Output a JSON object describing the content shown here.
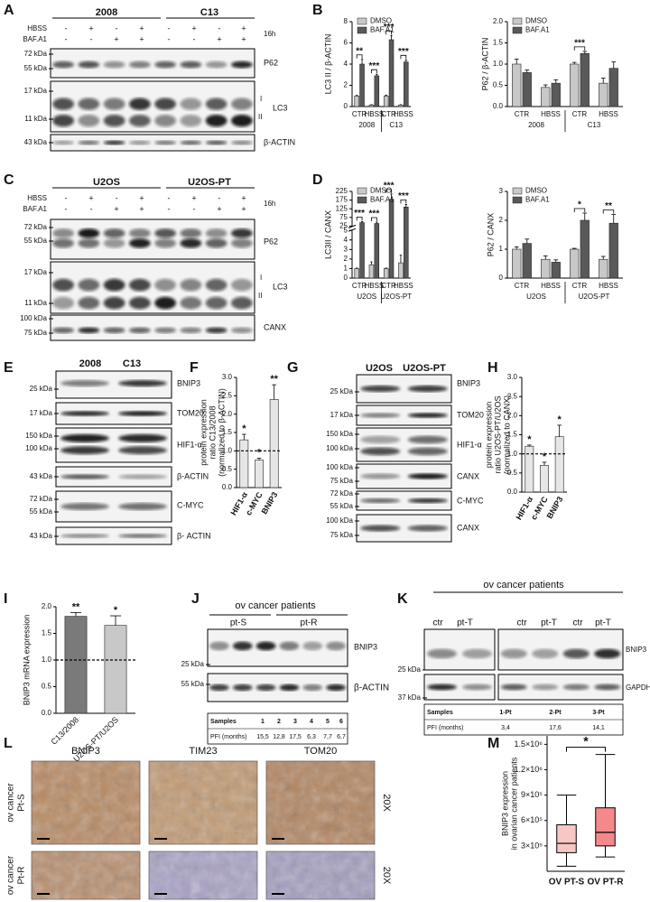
{
  "panels": [
    "A",
    "B",
    "C",
    "D",
    "E",
    "F",
    "G",
    "H",
    "I",
    "J",
    "K",
    "L",
    "M"
  ],
  "blot_A": {
    "headers": [
      "2008",
      "C13"
    ],
    "rows": [
      {
        "name": "HBSS",
        "signs": [
          "-",
          "+",
          "-",
          "+",
          "-",
          "+",
          "-",
          "+"
        ]
      },
      {
        "name": "BAF.A1",
        "signs": [
          "-",
          "-",
          "+",
          "+",
          "-",
          "-",
          "+",
          "+"
        ]
      }
    ],
    "time": "16h",
    "kda": [
      "72 kDa",
      "55 kDa",
      "17 kDa",
      "11 kDa",
      "43 kDa"
    ],
    "proteins": [
      "P62",
      "LC3",
      "β-ACTIN"
    ],
    "bands": [
      "I",
      "II"
    ]
  },
  "blot_C": {
    "headers": [
      "U2OS",
      "U2OS-PT"
    ],
    "rows": [
      {
        "name": "HBSS",
        "signs": [
          "-",
          "+",
          "-",
          "+",
          "-",
          "+",
          "-",
          "+"
        ]
      },
      {
        "name": "BAF.A1",
        "signs": [
          "-",
          "-",
          "+",
          "+",
          "-",
          "-",
          "+",
          "+"
        ]
      }
    ],
    "time": "16h",
    "kda": [
      "72 kDa",
      "55 kDa",
      "17 kDa",
      "11 kDa",
      "100 kDa",
      "75 kDa"
    ],
    "proteins": [
      "P62",
      "LC3",
      "CANX"
    ],
    "bands": [
      "I",
      "II"
    ]
  },
  "blot_E": {
    "headers": [
      "2008",
      "C13"
    ],
    "kda": [
      "25 kDa",
      "17 kDa",
      "150 kDa",
      "100 kDa",
      "43 kDa",
      "72 kDa",
      "55 kDa",
      "43 kDa"
    ],
    "proteins": [
      "BNIP3",
      "TOM20",
      "HIF1-α",
      "β-ACTIN",
      "C-MYC",
      "β- ACTIN"
    ]
  },
  "blot_G": {
    "headers": [
      "U2OS",
      "U2OS-PT"
    ],
    "kda": [
      "25 kDa",
      "17 kDa",
      "150 kDa",
      "100 kDa",
      "100 kDa",
      "75 kDa",
      "72 kDa",
      "55 kDa",
      "100 kDa",
      "75 kDa"
    ],
    "proteins": [
      "BNIP3",
      "TOM20",
      "HIF1-α",
      "CANX",
      "C-MYC",
      "CANX"
    ]
  },
  "blot_J": {
    "title": "ov cancer patients",
    "groups": [
      "pt-S",
      "pt-R"
    ],
    "kda": [
      "25 kDa",
      "55 kDa"
    ],
    "proteins": [
      "BNIP3",
      "β-ACTIN"
    ],
    "table": [
      [
        "Samples",
        "1",
        "2",
        "3",
        "4",
        "5",
        "6"
      ],
      [
        "PFI (months)",
        "15,5",
        "12,8",
        "17,5",
        "6,3",
        "7,7",
        "6,7"
      ]
    ]
  },
  "blot_K": {
    "title": "ov cancer patients",
    "lanes": [
      "ctr",
      "pt-T",
      "ctr",
      "pt-T",
      "ctr",
      "pt-T"
    ],
    "kda": [
      "25 kDa",
      "37 kDa"
    ],
    "proteins": [
      "BNIP3",
      "GAPDH"
    ],
    "table": [
      [
        "Samples",
        "1-Pt",
        "2-Pt",
        "3-Pt"
      ],
      [
        "PFI (months)",
        "3,4",
        "17,6",
        "14,1"
      ]
    ]
  },
  "histology": {
    "columns": [
      "BNIP3",
      "TIM23",
      "TOM20"
    ],
    "rows": [
      [
        "ov cancer",
        "Pt-S"
      ],
      [
        "ov cancer",
        "Pt-R"
      ]
    ],
    "magnification": "20X"
  },
  "chart_data": [
    {
      "type": "bar",
      "ylabel": [
        "LC3 II / β-ACTIN"
      ],
      "categories": [
        "CTR",
        "HBSS",
        "CTR",
        "HBSS"
      ],
      "category_groups": [
        "2008",
        "C13"
      ],
      "series": [
        {
          "name": "DMSO",
          "color": "#c8c8c8",
          "values": [
            1,
            0.15,
            1,
            0.15
          ],
          "errors": [
            0.05,
            0.03,
            0.08,
            0.03
          ]
        },
        {
          "name": "BAF.A1",
          "color": "#595959",
          "values": [
            4,
            2.9,
            6.3,
            4.2
          ],
          "errors": [
            0.45,
            0.15,
            0.4,
            0.2
          ]
        }
      ],
      "annotations": [
        "**",
        "***",
        "***",
        "***"
      ],
      "ylim": [
        0,
        8
      ],
      "yticks": [
        0,
        2,
        4,
        6,
        8
      ]
    },
    {
      "type": "bar",
      "ylabel": [
        "P62 / β-ACTIN"
      ],
      "categories": [
        "CTR",
        "HBSS",
        "CTR",
        "HBSS"
      ],
      "category_groups": [
        "2008",
        "C13"
      ],
      "series": [
        {
          "name": "DMSO",
          "color": "#c8c8c8",
          "values": [
            1.0,
            0.45,
            1.0,
            0.55
          ],
          "errors": [
            0.12,
            0.06,
            0.04,
            0.12
          ]
        },
        {
          "name": "BAF.A1",
          "color": "#595959",
          "values": [
            0.8,
            0.55,
            1.25,
            0.9
          ],
          "errors": [
            0.06,
            0.08,
            0.05,
            0.15
          ]
        }
      ],
      "annotations": [
        null,
        null,
        "***",
        null
      ],
      "ylim": [
        0,
        2
      ],
      "yticks": [
        {
          "value": 0,
          "label": "0.0"
        },
        0.5,
        {
          "value": 1,
          "label": "1.0"
        },
        1.5,
        {
          "value": 2,
          "label": "2.0"
        }
      ]
    },
    {
      "type": "bar",
      "ylabel": [
        "LC3II / CANX"
      ],
      "categories": [
        "CTR",
        "HBSS",
        "CTR",
        "HBSS"
      ],
      "category_groups": [
        "U2OS",
        "U2OS-PT"
      ],
      "series": [
        {
          "name": "DMSO",
          "color": "#c8c8c8",
          "values": [
            1,
            1.4,
            1,
            1.6
          ],
          "errors": [
            0.05,
            0.3,
            0.05,
            0.8
          ]
        },
        {
          "name": "BAF.A1",
          "color": "#595959",
          "values": [
            45,
            40,
            180,
            135
          ],
          "errors": [
            6,
            8,
            30,
            15
          ]
        }
      ],
      "annotations": [
        "***",
        "***",
        "***",
        "***"
      ],
      "ylim": [
        0,
        225
      ],
      "ybreak": [
        5,
        25
      ],
      "yticks": [
        0,
        1,
        2,
        3,
        4,
        5,
        25,
        75,
        125,
        175,
        225
      ]
    },
    {
      "type": "bar",
      "ylabel": [
        "P62 / CANX"
      ],
      "categories": [
        "CTR",
        "HBSS",
        "CTR",
        "HBSS"
      ],
      "category_groups": [
        "U2OS",
        "U2OS-PT"
      ],
      "series": [
        {
          "name": "DMSO",
          "color": "#c8c8c8",
          "values": [
            1,
            0.65,
            1,
            0.65
          ],
          "errors": [
            0.08,
            0.12,
            0.03,
            0.1
          ]
        },
        {
          "name": "BAF.A1",
          "color": "#595959",
          "values": [
            1.2,
            0.55,
            2.0,
            1.9
          ],
          "errors": [
            0.15,
            0.08,
            0.25,
            0.3
          ]
        }
      ],
      "annotations": [
        null,
        null,
        "*",
        "**"
      ],
      "ylim": [
        0,
        3
      ],
      "yticks": [
        0,
        1,
        2,
        3
      ]
    },
    {
      "type": "bar",
      "ylabel": [
        "protein expression",
        "ratio C13/2008",
        "(normalized to β-ACTIN)"
      ],
      "categories": [
        "HIF1-α",
        "c-MYC",
        "BNIP3"
      ],
      "series": [
        {
          "color": "#e6e6e6",
          "values": [
            1.3,
            0.75,
            2.4
          ],
          "errors": [
            0.15,
            0.05,
            0.4
          ]
        }
      ],
      "annotations": [
        "*",
        "*",
        "**"
      ],
      "reference_line": 1,
      "ylim": [
        0,
        3
      ],
      "yticks": [
        {
          "value": 0,
          "label": "0.0"
        },
        0.5,
        {
          "value": 1,
          "label": "1.0"
        },
        1.5,
        {
          "value": 2,
          "label": "2.0"
        },
        2.5,
        {
          "value": 3,
          "label": "3.0"
        }
      ]
    },
    {
      "type": "bar",
      "ylabel": [
        "protein expression",
        "ratio U2OS-PT/U2OS",
        "(normalized to CANX)"
      ],
      "categories": [
        "HIF1-α",
        "c-MYC",
        "BNIP3"
      ],
      "series": [
        {
          "color": "#e6e6e6",
          "values": [
            1.2,
            0.7,
            1.45
          ],
          "errors": [
            0.03,
            0.08,
            0.3
          ]
        }
      ],
      "annotations": [
        "*",
        "*",
        "*"
      ],
      "reference_line": 1,
      "ylim": [
        0,
        3
      ],
      "yticks": [
        {
          "value": 0,
          "label": "0.0"
        },
        0.5,
        {
          "value": 1,
          "label": "1.0"
        },
        1.5,
        {
          "value": 2,
          "label": "2.0"
        },
        2.5,
        {
          "value": 3,
          "label": "3.0"
        }
      ]
    },
    {
      "type": "bar",
      "ylabel": [
        "BNIP3 mRNA expression"
      ],
      "categories": [
        "C13/2008",
        "U2OS-PT/U2OS"
      ],
      "series": [
        {
          "colors": [
            "#7a7a7a",
            "#c8c8c8"
          ],
          "values": [
            1.82,
            1.65
          ],
          "errors": [
            0.07,
            0.18
          ]
        }
      ],
      "annotations": [
        "**",
        "*"
      ],
      "reference_line": 1,
      "ylim": [
        0,
        2
      ],
      "yticks": [
        {
          "value": 0,
          "label": "0.0"
        },
        0.5,
        {
          "value": 1,
          "label": "1.0"
        },
        1.5,
        {
          "value": 2,
          "label": "2.0"
        }
      ]
    },
    {
      "type": "box",
      "ylabel": [
        "BNIP3 expression",
        "in ovarian cancer patients"
      ],
      "categories": [
        "OV PT-S",
        "OV PT-R"
      ],
      "colors": [
        "#f9c6c6",
        "#f4888a"
      ],
      "boxes": [
        {
          "min": 60000,
          "q1": 220000,
          "median": 330000,
          "q3": 550000,
          "max": 900000
        },
        {
          "min": 170000,
          "q1": 300000,
          "median": 460000,
          "q3": 750000,
          "max": 1380000
        }
      ],
      "annotation": "*",
      "ylim": [
        0,
        1600000
      ],
      "yticks": [
        {
          "value": 300000,
          "label": "3×10⁵"
        },
        {
          "value": 600000,
          "label": "6×10⁵"
        },
        {
          "value": 900000,
          "label": "9×10⁵"
        },
        {
          "value": 1200000,
          "label": "1.2×10⁶"
        },
        {
          "value": 1500000,
          "label": "1.5×10⁶"
        }
      ]
    }
  ]
}
